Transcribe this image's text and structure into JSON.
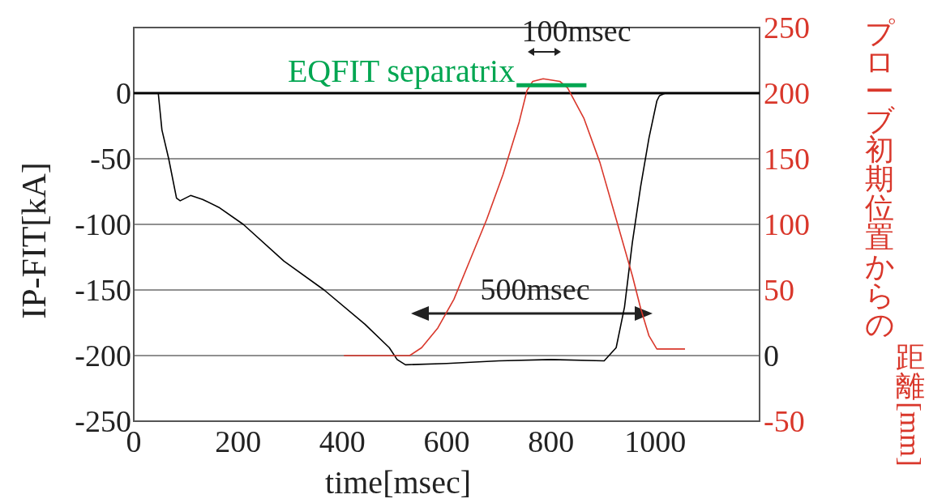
{
  "chart_data": {
    "type": "line",
    "xlabel": "time[msec]",
    "ylabel": "IP-FIT[kA]",
    "y2label": "プローブ初期位置からの距離[mm]",
    "xlim": [
      0,
      1200
    ],
    "xticks": [
      0,
      200,
      400,
      600,
      800,
      1000
    ],
    "ylim": [
      -250,
      50
    ],
    "yticks": [
      -250,
      -200,
      -150,
      -100,
      -50,
      0
    ],
    "y2lim": [
      -50,
      250
    ],
    "y2ticks": [
      -50,
      0,
      50,
      100,
      150,
      200,
      250
    ],
    "grid": "y",
    "legend": false,
    "marker": "none",
    "line_style": "solid",
    "ref_lines": [
      {
        "axis": "y",
        "value": 0,
        "color": "#000000"
      }
    ],
    "series": [
      {
        "color": "#000000",
        "x": [
          47,
          54,
          67,
          82,
          89,
          109,
          132,
          163,
          210,
          288,
          365,
          443,
          490,
          505,
          521,
          600,
          700,
          800,
          902,
          925,
          941,
          956,
          972,
          988,
          1003,
          1008,
          1019
        ],
        "values": [
          0,
          -28,
          -50,
          -80,
          -82,
          -78,
          -81,
          -87,
          -100,
          -128,
          -150,
          -176,
          -194,
          -203,
          -207,
          -206,
          -204,
          -203,
          -204,
          -194,
          -163,
          -114,
          -71,
          -34,
          -6,
          -2,
          0
        ]
      },
      {
        "color": "#d9372b",
        "axis": "y2",
        "x": [
          403,
          529,
          552,
          583,
          614,
          645,
          677,
          708,
          739,
          754,
          765,
          785,
          817,
          832,
          863,
          894,
          925,
          956,
          972,
          988,
          1003,
          1057
        ],
        "values": [
          0,
          0,
          6,
          21,
          43,
          73,
          104,
          138,
          178,
          202,
          209,
          211,
          209,
          204,
          181,
          147,
          104,
          61,
          36,
          15,
          5,
          5
        ]
      },
      {
        "name": "EQFIT separatrix",
        "color": "#00a651",
        "axis": "y2",
        "x": [
          734,
          868
        ],
        "values": [
          206,
          206
        ]
      }
    ],
    "annotations": [
      "100msec",
      "500msec"
    ]
  }
}
